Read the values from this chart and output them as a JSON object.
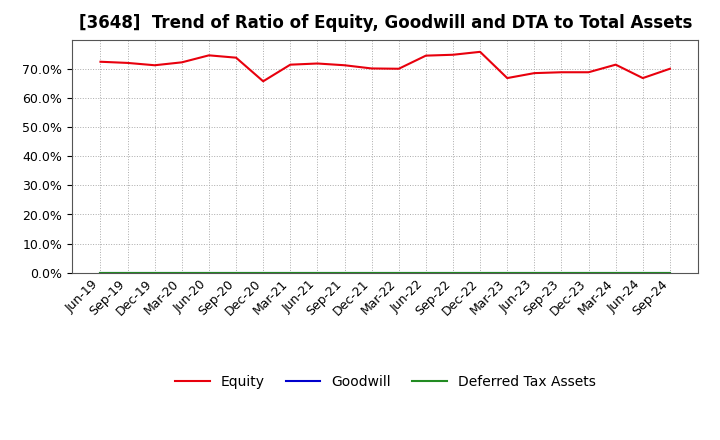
{
  "title": "[3648]  Trend of Ratio of Equity, Goodwill and DTA to Total Assets",
  "x_labels": [
    "Jun-19",
    "Sep-19",
    "Dec-19",
    "Mar-20",
    "Jun-20",
    "Sep-20",
    "Dec-20",
    "Mar-21",
    "Jun-21",
    "Sep-21",
    "Dec-21",
    "Mar-22",
    "Jun-22",
    "Sep-22",
    "Dec-22",
    "Mar-23",
    "Jun-23",
    "Sep-23",
    "Dec-23",
    "Mar-24",
    "Jun-24",
    "Sep-24"
  ],
  "equity": [
    0.724,
    0.72,
    0.712,
    0.722,
    0.746,
    0.738,
    0.657,
    0.714,
    0.718,
    0.712,
    0.701,
    0.7,
    0.745,
    0.748,
    0.758,
    0.668,
    0.685,
    0.688,
    0.688,
    0.714,
    0.668,
    0.7
  ],
  "goodwill": [
    0.0,
    0.0,
    0.0,
    0.0,
    0.0,
    0.0,
    0.0,
    0.0,
    0.0,
    0.0,
    0.0,
    0.0,
    0.0,
    0.0,
    0.0,
    0.0,
    0.0,
    0.0,
    0.0,
    0.0,
    0.0,
    0.0
  ],
  "dta": [
    0.0,
    0.0,
    0.0,
    0.0,
    0.0,
    0.0,
    0.0,
    0.0,
    0.0,
    0.0,
    0.0,
    0.0,
    0.0,
    0.0,
    0.0,
    0.0,
    0.0,
    0.0,
    0.0,
    0.0,
    0.0,
    0.0
  ],
  "equity_color": "#e8000d",
  "goodwill_color": "#0000cd",
  "dta_color": "#228B22",
  "ylim": [
    0.0,
    0.8
  ],
  "yticks": [
    0.0,
    0.1,
    0.2,
    0.3,
    0.4,
    0.5,
    0.6,
    0.7
  ],
  "background_color": "#ffffff",
  "plot_bg_color": "#ffffff",
  "grid_color": "#aaaaaa",
  "legend_labels": [
    "Equity",
    "Goodwill",
    "Deferred Tax Assets"
  ],
  "title_fontsize": 12,
  "tick_fontsize": 9,
  "legend_fontsize": 10
}
